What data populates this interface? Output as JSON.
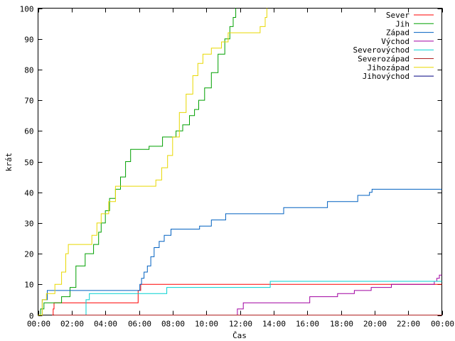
{
  "chart_data": {
    "type": "line",
    "xlabel": "Čas",
    "ylabel": "krát",
    "xlim": [
      0,
      24
    ],
    "ylim": [
      0,
      100
    ],
    "x_ticks": [
      {
        "value": 0,
        "label": "00:00"
      },
      {
        "value": 2,
        "label": "02:00"
      },
      {
        "value": 4,
        "label": "04:00"
      },
      {
        "value": 6,
        "label": "06:00"
      },
      {
        "value": 8,
        "label": "08:00"
      },
      {
        "value": 10,
        "label": "10:00"
      },
      {
        "value": 12,
        "label": "12:00"
      },
      {
        "value": 14,
        "label": "14:00"
      },
      {
        "value": 16,
        "label": "16:00"
      },
      {
        "value": 18,
        "label": "18:00"
      },
      {
        "value": 20,
        "label": "20:00"
      },
      {
        "value": 22,
        "label": "22:00"
      },
      {
        "value": 24,
        "label": "00:00"
      }
    ],
    "y_ticks": [
      {
        "value": 0,
        "label": "0"
      },
      {
        "value": 10,
        "label": "10"
      },
      {
        "value": 20,
        "label": "20"
      },
      {
        "value": 30,
        "label": "30"
      },
      {
        "value": 40,
        "label": "40"
      },
      {
        "value": 50,
        "label": "50"
      },
      {
        "value": 60,
        "label": "60"
      },
      {
        "value": 70,
        "label": "70"
      },
      {
        "value": 80,
        "label": "80"
      },
      {
        "value": 90,
        "label": "90"
      },
      {
        "value": 100,
        "label": "100"
      }
    ],
    "grid": false,
    "legend_position": "top-right",
    "step": true,
    "series": [
      {
        "name": "Sever",
        "color": "#ff0000",
        "points": [
          [
            0.85,
            0
          ],
          [
            0.9,
            2
          ],
          [
            0.95,
            4
          ],
          [
            5.8,
            4
          ],
          [
            5.95,
            8
          ],
          [
            6.1,
            10
          ],
          [
            24,
            10
          ]
        ]
      },
      {
        "name": "Jih",
        "color": "#00a000",
        "points": [
          [
            0.05,
            0
          ],
          [
            0.15,
            2
          ],
          [
            0.35,
            4
          ],
          [
            1.4,
            6
          ],
          [
            1.9,
            9
          ],
          [
            2.25,
            16
          ],
          [
            2.8,
            20
          ],
          [
            3.3,
            23
          ],
          [
            3.6,
            27
          ],
          [
            3.75,
            30
          ],
          [
            4.0,
            34
          ],
          [
            4.25,
            38
          ],
          [
            4.6,
            41
          ],
          [
            4.9,
            45
          ],
          [
            5.2,
            50
          ],
          [
            5.5,
            54
          ],
          [
            6.6,
            55
          ],
          [
            7.4,
            58
          ],
          [
            8.2,
            60
          ],
          [
            8.6,
            62
          ],
          [
            9.0,
            65
          ],
          [
            9.3,
            67
          ],
          [
            9.55,
            70
          ],
          [
            9.9,
            74
          ],
          [
            10.3,
            79
          ],
          [
            10.7,
            85
          ],
          [
            11.1,
            90
          ],
          [
            11.4,
            94
          ],
          [
            11.6,
            97
          ],
          [
            11.75,
            100
          ]
        ]
      },
      {
        "name": "Západ",
        "color": "#0060c0",
        "points": [
          [
            0,
            0
          ],
          [
            0.25,
            5
          ],
          [
            0.55,
            8
          ],
          [
            6.0,
            8
          ],
          [
            6.05,
            10
          ],
          [
            6.15,
            12
          ],
          [
            6.3,
            14
          ],
          [
            6.5,
            16
          ],
          [
            6.7,
            19
          ],
          [
            6.9,
            22
          ],
          [
            7.2,
            24
          ],
          [
            7.5,
            26
          ],
          [
            7.9,
            28
          ],
          [
            9.6,
            29
          ],
          [
            10.3,
            31
          ],
          [
            11.15,
            33
          ],
          [
            14.6,
            35
          ],
          [
            17.2,
            37
          ],
          [
            19.0,
            39
          ],
          [
            19.7,
            40
          ],
          [
            19.85,
            41
          ],
          [
            24,
            41
          ]
        ]
      },
      {
        "name": "Východ",
        "color": "#a000a0",
        "points": [
          [
            11.75,
            0
          ],
          [
            11.85,
            2
          ],
          [
            12.2,
            4
          ],
          [
            16.15,
            6
          ],
          [
            17.8,
            7
          ],
          [
            18.8,
            8
          ],
          [
            19.8,
            9
          ],
          [
            21.0,
            10
          ],
          [
            23.55,
            11
          ],
          [
            23.7,
            12
          ],
          [
            23.85,
            13
          ],
          [
            24,
            13
          ]
        ]
      },
      {
        "name": "Severovýchod",
        "color": "#00d0d0",
        "points": [
          [
            2.75,
            0
          ],
          [
            2.85,
            5
          ],
          [
            3.05,
            7
          ],
          [
            7.65,
            9
          ],
          [
            13.8,
            11
          ],
          [
            24,
            11
          ]
        ]
      },
      {
        "name": "Severozápad",
        "color": "#b02020",
        "points": [
          [
            0.95,
            0
          ],
          [
            24,
            0
          ]
        ]
      },
      {
        "name": "Jihozápad",
        "color": "#e8d800",
        "points": [
          [
            0,
            0
          ],
          [
            0.25,
            5
          ],
          [
            0.5,
            7
          ],
          [
            1.0,
            10
          ],
          [
            1.4,
            14
          ],
          [
            1.65,
            20
          ],
          [
            1.8,
            23
          ],
          [
            3.2,
            26
          ],
          [
            3.5,
            30
          ],
          [
            3.75,
            33
          ],
          [
            4.2,
            37
          ],
          [
            4.6,
            42
          ],
          [
            6.5,
            42
          ],
          [
            7.0,
            44
          ],
          [
            7.35,
            48
          ],
          [
            7.7,
            52
          ],
          [
            8.0,
            58
          ],
          [
            8.4,
            66
          ],
          [
            8.8,
            72
          ],
          [
            9.2,
            78
          ],
          [
            9.5,
            82
          ],
          [
            9.8,
            85
          ],
          [
            10.3,
            87
          ],
          [
            10.9,
            89
          ],
          [
            11.3,
            92
          ],
          [
            12.6,
            92
          ],
          [
            13.2,
            94
          ],
          [
            13.5,
            97
          ],
          [
            13.6,
            100
          ]
        ]
      },
      {
        "name": "Jihovýchod",
        "color": "#000080",
        "points": []
      }
    ]
  }
}
